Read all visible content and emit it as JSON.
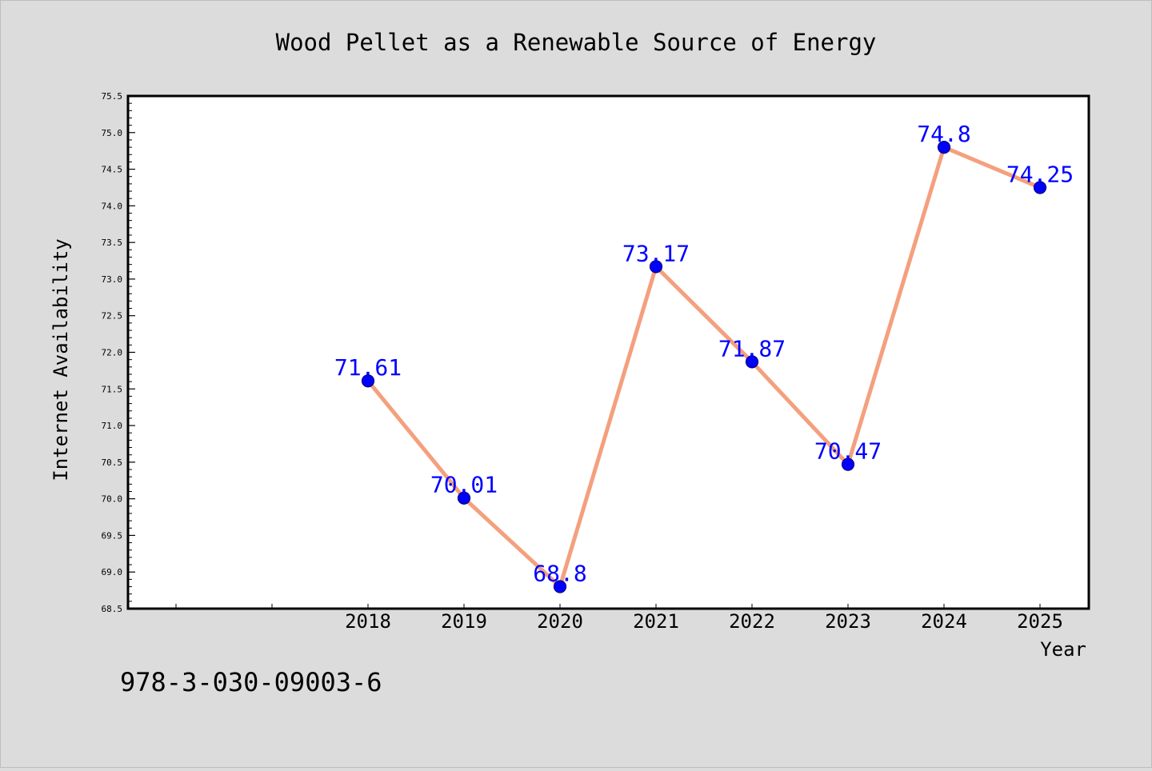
{
  "chart_data": {
    "type": "line",
    "title": "Wood Pellet as a Renewable Source of Energy",
    "xlabel": "Year",
    "ylabel": "Internet Availability",
    "categories": [
      "2018",
      "2019",
      "2020",
      "2021",
      "2022",
      "2023",
      "2024",
      "2025"
    ],
    "x_slots_before": 2,
    "series": [
      {
        "values": [
          71.61,
          70.01,
          68.8,
          73.17,
          71.87,
          70.47,
          74.8,
          74.25
        ]
      }
    ],
    "data_labels": [
      "71.61",
      "70.01",
      "68.8",
      "73.17",
      "71.87",
      "70.47",
      "74.8",
      "74.25"
    ],
    "ylim": [
      68.5,
      75.5
    ],
    "yticks": [
      "68.5",
      "69.0",
      "69.5",
      "70.0",
      "70.5",
      "71.0",
      "71.5",
      "72.0",
      "72.5",
      "73.0",
      "73.5",
      "74.0",
      "74.5",
      "75.0",
      "75.5"
    ],
    "grid": false,
    "colors": {
      "line": "#f4a07e",
      "marker": "#0000ff",
      "marker_edge": "#000080",
      "data_label": "#0000ff",
      "background": "#dcdcdc",
      "plot_background": "#ffffff"
    }
  },
  "footer": {
    "isbn": "978-3-030-09003-6"
  }
}
